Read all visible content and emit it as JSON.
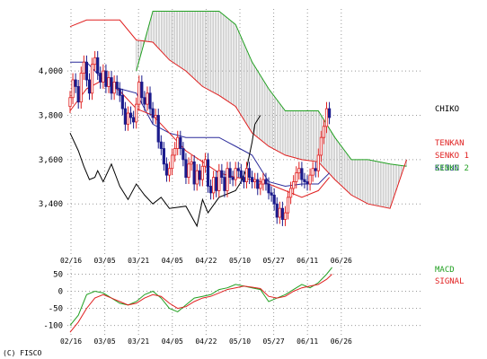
{
  "copyright": "(C) FISCO",
  "colors": {
    "candle_up": "#e02020",
    "candle_down": "#1b1b8c",
    "tenkan": "#e02020",
    "kijun": "#2a2a9a",
    "senko1": "#e02020",
    "senko2": "#22a022",
    "chiko": "#000000",
    "cloud": "#b0b0b0",
    "macd": "#22a022",
    "signal": "#e02020",
    "grid": "#999999"
  },
  "chart_data": [
    {
      "type": "candlestick",
      "title": "",
      "x_tick_labels": [
        "02/16",
        "03/05",
        "03/21",
        "04/05",
        "04/22",
        "05/10",
        "05/27",
        "06/11",
        "06/26"
      ],
      "y_tick_labels": [
        "3,400",
        "3,600",
        "3,800",
        "4,000"
      ],
      "ylim": [
        3170,
        4280
      ],
      "grid": true,
      "legend": [
        {
          "label": "CHIKO",
          "color": "#000000"
        },
        {
          "label": "TENKAN",
          "color": "#e02020"
        },
        {
          "label": "SENKO 1",
          "color": "#e02020"
        },
        {
          "label": "KIJUN",
          "color": "#2a2a9a"
        },
        {
          "label": "SENKO 2",
          "color": "#22a022"
        }
      ],
      "close": [
        3880,
        3960,
        3930,
        3860,
        3990,
        4040,
        3960,
        3900,
        4030,
        4060,
        3990,
        3950,
        4000,
        3930,
        3970,
        3900,
        3950,
        3920,
        3890,
        3830,
        3760,
        3810,
        3790,
        3770,
        3850,
        3950,
        3880,
        3850,
        3900,
        3830,
        3790,
        3800,
        3680,
        3650,
        3580,
        3530,
        3560,
        3620,
        3650,
        3700,
        3650,
        3600,
        3520,
        3580,
        3590,
        3490,
        3550,
        3510,
        3570,
        3600,
        3480,
        3450,
        3520,
        3460,
        3550,
        3520,
        3460,
        3560,
        3520,
        3510,
        3560,
        3550,
        3520,
        3500,
        3560,
        3520,
        3500,
        3510,
        3470,
        3490,
        3510,
        3490,
        3450,
        3440,
        3400,
        3340,
        3380,
        3330,
        3360,
        3430,
        3470,
        3500,
        3540,
        3560,
        3510,
        3500,
        3490,
        3530,
        3560,
        3550,
        3620,
        3700,
        3750,
        3830,
        3790
      ],
      "ohlc_rule": "open = previous close; high/low = max/min(open, close) ± 30",
      "ichimoku": {
        "tenkan_x": [
          0,
          6,
          12,
          18,
          24,
          30,
          36,
          42,
          48,
          54,
          60,
          66,
          72,
          78,
          84,
          90,
          94
        ],
        "tenkan": [
          3820,
          3920,
          3960,
          3910,
          3830,
          3800,
          3720,
          3640,
          3590,
          3540,
          3520,
          3510,
          3490,
          3460,
          3430,
          3460,
          3520
        ],
        "kijun_x": [
          0,
          6,
          12,
          18,
          24,
          30,
          36,
          42,
          48,
          54,
          60,
          66,
          72,
          78,
          84,
          90,
          94
        ],
        "kijun": [
          4040,
          4040,
          3960,
          3920,
          3900,
          3760,
          3720,
          3700,
          3700,
          3700,
          3660,
          3620,
          3500,
          3480,
          3490,
          3490,
          3540
        ],
        "senko1_x": [
          0,
          6,
          12,
          18,
          24,
          30,
          36,
          42,
          48,
          54,
          60,
          66,
          72,
          78,
          84,
          90,
          96,
          102,
          108,
          116,
          122
        ],
        "senko1": [
          4200,
          4230,
          4230,
          4230,
          4140,
          4130,
          4050,
          4000,
          3930,
          3890,
          3840,
          3720,
          3660,
          3620,
          3600,
          3590,
          3510,
          3440,
          3400,
          3380,
          3600
        ],
        "senko2_x": [
          24,
          30,
          36,
          42,
          48,
          54,
          60,
          66,
          72,
          78,
          84,
          90,
          96,
          102,
          108,
          116,
          122
        ],
        "senko2": [
          4000,
          4270,
          4270,
          4270,
          4270,
          4270,
          4210,
          4040,
          3920,
          3820,
          3820,
          3820,
          3700,
          3600,
          3600,
          3580,
          3570
        ],
        "chiko_x": [
          0,
          3,
          5,
          7,
          9,
          10,
          12,
          15,
          18,
          21,
          24,
          27,
          30,
          33,
          36,
          42,
          46,
          48,
          50,
          54,
          58,
          60,
          62,
          64,
          66,
          67,
          69
        ],
        "chiko": [
          3720,
          3640,
          3570,
          3510,
          3520,
          3550,
          3500,
          3580,
          3480,
          3420,
          3490,
          3440,
          3400,
          3430,
          3380,
          3390,
          3300,
          3420,
          3360,
          3430,
          3450,
          3460,
          3500,
          3560,
          3680,
          3760,
          3800
        ]
      }
    },
    {
      "type": "line",
      "title": "",
      "x_tick_labels": [
        "02/16",
        "03/05",
        "03/21",
        "04/05",
        "04/22",
        "05/10",
        "05/27",
        "06/11",
        "06/26"
      ],
      "y_tick_labels": [
        "50",
        "0",
        "-50",
        "-100"
      ],
      "ylim": [
        -130,
        75
      ],
      "grid": true,
      "legend": [
        {
          "label": "MACD",
          "color": "#22a022"
        },
        {
          "label": "SIGNAL",
          "color": "#e02020"
        }
      ],
      "series": [
        {
          "name": "MACD",
          "x": [
            0,
            3,
            6,
            9,
            12,
            15,
            18,
            21,
            24,
            27,
            30,
            33,
            36,
            39,
            42,
            45,
            48,
            51,
            54,
            57,
            60,
            63,
            66,
            69,
            72,
            75,
            78,
            81,
            84,
            87,
            90,
            93,
            95
          ],
          "values": [
            -100,
            -70,
            -10,
            0,
            -5,
            -20,
            -35,
            -40,
            -30,
            -10,
            0,
            -20,
            -50,
            -60,
            -40,
            -20,
            -15,
            -10,
            5,
            10,
            20,
            15,
            10,
            5,
            -30,
            -20,
            -10,
            5,
            20,
            10,
            25,
            50,
            70
          ]
        },
        {
          "name": "SIGNAL",
          "x": [
            0,
            3,
            6,
            9,
            12,
            15,
            18,
            21,
            24,
            27,
            30,
            33,
            36,
            39,
            42,
            45,
            48,
            51,
            54,
            57,
            60,
            63,
            66,
            69,
            72,
            75,
            78,
            81,
            84,
            87,
            90,
            93,
            95
          ],
          "values": [
            -120,
            -90,
            -50,
            -20,
            -10,
            -20,
            -30,
            -40,
            -35,
            -20,
            -10,
            -15,
            -35,
            -50,
            -45,
            -30,
            -20,
            -15,
            -5,
            5,
            10,
            15,
            12,
            8,
            -15,
            -20,
            -15,
            0,
            10,
            15,
            20,
            35,
            50
          ]
        }
      ]
    }
  ]
}
